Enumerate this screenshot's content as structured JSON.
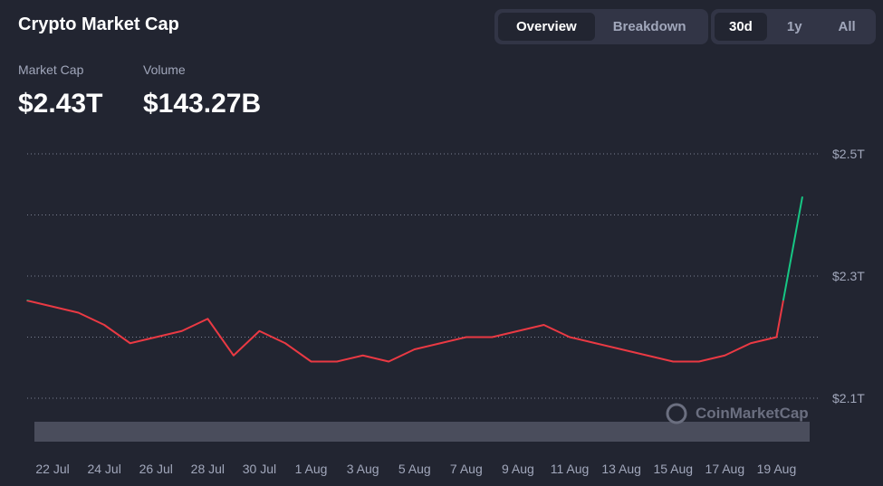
{
  "header": {
    "title": "Crypto Market Cap",
    "view_tabs": [
      "Overview",
      "Breakdown"
    ],
    "range_tabs": [
      "30d",
      "1y",
      "All"
    ],
    "stats": [
      {
        "label": "Market Cap",
        "value": "$2.43T"
      },
      {
        "label": "Volume",
        "value": "$143.27B"
      }
    ],
    "watermark": "CoinMarketCap"
  },
  "chart_data": {
    "type": "line",
    "categories": [
      null,
      "22 Jul",
      null,
      "24 Jul",
      null,
      "26 Jul",
      null,
      "28 Jul",
      null,
      "30 Jul",
      null,
      "1 Aug",
      null,
      "3 Aug",
      null,
      "5 Aug",
      null,
      "7 Aug",
      null,
      "9 Aug",
      null,
      "11 Aug",
      null,
      "13 Aug",
      null,
      "15 Aug",
      null,
      "17 Aug",
      null,
      "19 Aug",
      null
    ],
    "series": [
      {
        "name": "Market Cap",
        "color": "#ea3943",
        "up_color": "#16c784",
        "values": [
          2.26,
          2.25,
          2.24,
          2.22,
          2.19,
          2.2,
          2.21,
          2.23,
          2.17,
          2.21,
          2.19,
          2.16,
          2.16,
          2.17,
          2.16,
          2.18,
          2.19,
          2.2,
          2.2,
          2.21,
          2.22,
          2.2,
          2.19,
          2.18,
          2.17,
          2.16,
          2.16,
          2.17,
          2.19,
          2.2,
          2.43
        ]
      }
    ],
    "ylim": [
      2.1,
      2.5
    ],
    "yticks": [
      {
        "value": 2.1,
        "label": "$2.1T"
      },
      {
        "value": 2.3,
        "label": "$2.3T"
      },
      {
        "value": 2.5,
        "label": "$2.5T"
      }
    ],
    "ygrid": [
      2.1,
      2.2,
      2.3,
      2.4,
      2.5
    ],
    "grid": true
  }
}
